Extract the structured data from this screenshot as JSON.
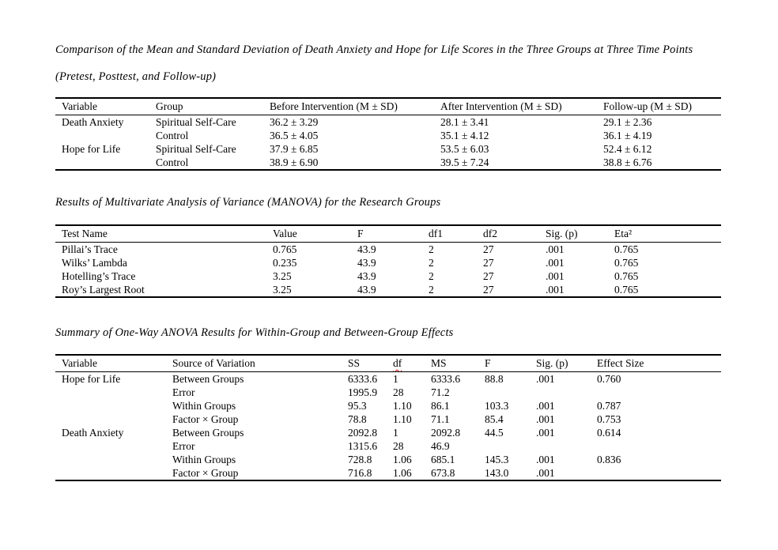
{
  "page": {
    "background_color": "#ffffff",
    "text_color": "#000000",
    "rule_color": "#000000",
    "spellcheck_squiggle_color": "#cc0000"
  },
  "sections": [
    {
      "title_lines": [
        "Comparison of the Mean and Standard Deviation of Death Anxiety and Hope for Life Scores in the Three Groups at Three Time Points",
        "(Pretest, Posttest, and Follow-up)"
      ],
      "table": {
        "columns": [
          "Variable",
          "Group",
          "Before Intervention (M ± SD)",
          "After Intervention (M ± SD)",
          "Follow-up (M ± SD)"
        ],
        "rows": [
          [
            "Death Anxiety",
            "Spiritual Self-Care",
            "36.2 ± 3.29",
            "28.1 ± 3.41",
            "29.1 ± 2.36"
          ],
          [
            "",
            "Control",
            "36.5 ± 4.05",
            "35.1 ± 4.12",
            "36.1 ± 4.19"
          ],
          [
            "Hope for Life",
            "Spiritual Self-Care",
            "37.9 ± 6.85",
            "53.5 ± 6.03",
            "52.4 ± 6.12"
          ],
          [
            "",
            "Control",
            "38.9 ± 6.90",
            "39.5 ± 7.24",
            "38.8 ± 6.76"
          ]
        ]
      }
    },
    {
      "title_lines": [
        "Results of Multivariate Analysis of Variance (MANOVA) for the Research Groups"
      ],
      "table": {
        "columns": [
          "Test Name",
          "Value",
          "F",
          "df1",
          "df2",
          "Sig. (p)",
          "Eta²"
        ],
        "rows": [
          [
            "Pillai’s Trace",
            "0.765",
            "43.9",
            "2",
            "27",
            ".001",
            "0.765"
          ],
          [
            "Wilks’ Lambda",
            "0.235",
            "43.9",
            "2",
            "27",
            ".001",
            "0.765"
          ],
          [
            "Hotelling’s Trace",
            "3.25",
            "43.9",
            "2",
            "27",
            ".001",
            "0.765"
          ],
          [
            "Roy’s Largest Root",
            "3.25",
            "43.9",
            "2",
            "27",
            ".001",
            "0.765"
          ]
        ]
      }
    },
    {
      "title_lines": [
        "Summary of One-Way ANOVA Results for Within-Group and Between-Group Effects"
      ],
      "table": {
        "columns": [
          "Variable",
          "Source of Variation",
          "SS",
          "df",
          "MS",
          "F",
          "Sig. (p)",
          "Effect Size"
        ],
        "misspelled_columns": [
          "df"
        ],
        "rows": [
          [
            "Hope for Life",
            "Between Groups",
            "6333.6",
            "1",
            "6333.6",
            "88.8",
            ".001",
            "0.760"
          ],
          [
            "",
            "Error",
            "1995.9",
            "28",
            "71.2",
            "",
            "",
            ""
          ],
          [
            "",
            "Within Groups",
            "95.3",
            "1.10",
            "86.1",
            "103.3",
            ".001",
            "0.787"
          ],
          [
            "",
            "Factor × Group",
            "78.8",
            "1.10",
            "71.1",
            "85.4",
            ".001",
            "0.753"
          ],
          [
            "Death Anxiety",
            "Between Groups",
            "2092.8",
            "1",
            "2092.8",
            "44.5",
            ".001",
            "0.614"
          ],
          [
            "",
            "Error",
            "1315.6",
            "28",
            "46.9",
            "",
            "",
            ""
          ],
          [
            "",
            "Within Groups",
            "728.8",
            "1.06",
            "685.1",
            "145.3",
            ".001",
            "0.836"
          ],
          [
            "",
            "Factor × Group",
            "716.8",
            "1.06",
            "673.8",
            "143.0",
            ".001",
            ""
          ]
        ]
      }
    }
  ]
}
